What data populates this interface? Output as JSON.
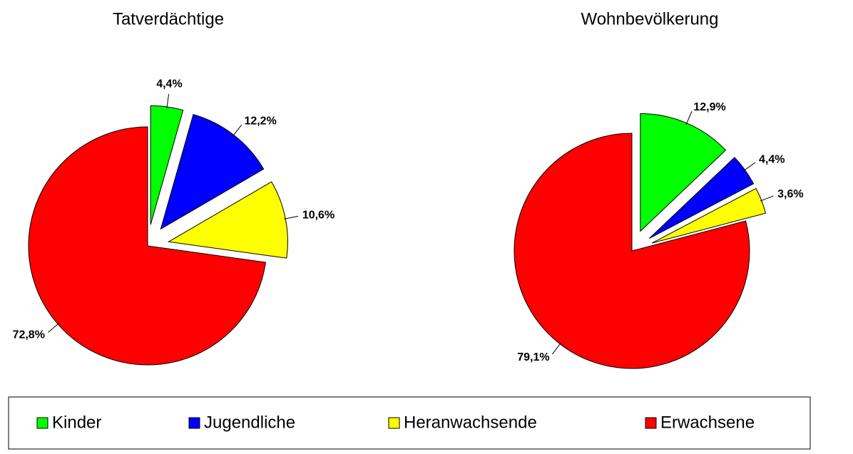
{
  "chart_data": [
    {
      "type": "pie",
      "title": "Tatverdächtige",
      "categories": [
        "Kinder",
        "Jugendliche",
        "Heranwachsende",
        "Erwachsene"
      ],
      "values": [
        4.4,
        12.2,
        10.6,
        72.8
      ],
      "value_labels": [
        "4,4%",
        "12,2%",
        "10,6%",
        "72,8%"
      ],
      "colors": [
        "#00ff00",
        "#0000ff",
        "#ffff00",
        "#ff0000"
      ]
    },
    {
      "type": "pie",
      "title": "Wohnbevölkerung",
      "categories": [
        "Kinder",
        "Jugendliche",
        "Heranwachsende",
        "Erwachsene"
      ],
      "values": [
        12.9,
        4.4,
        3.6,
        79.1
      ],
      "value_labels": [
        "12,9%",
        "4,4%",
        "3,6%",
        "79,1%"
      ],
      "colors": [
        "#00ff00",
        "#0000ff",
        "#ffff00",
        "#ff0000"
      ]
    }
  ]
}
